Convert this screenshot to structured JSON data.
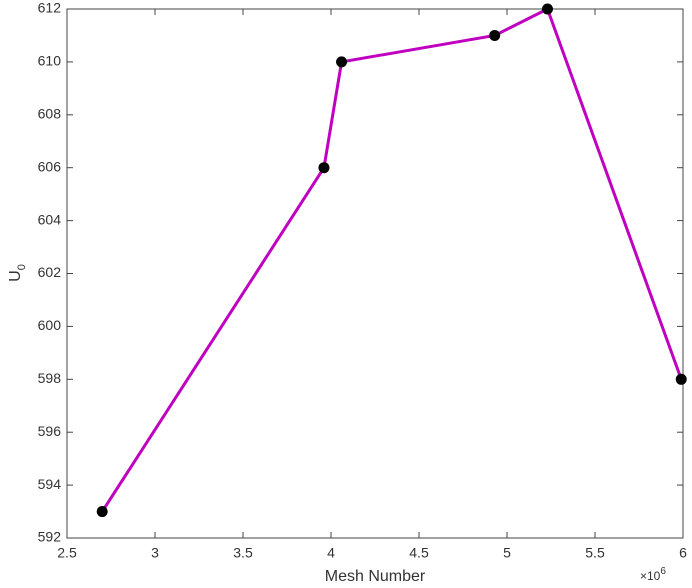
{
  "chart_data": {
    "type": "line",
    "xlabel": "Mesh Number",
    "ylabel": {
      "text": "U",
      "subscript": "0"
    },
    "x_multiplier": {
      "base": "×10",
      "exponent": "6"
    },
    "x": [
      2.7,
      3.96,
      4.06,
      4.93,
      5.23,
      5.99
    ],
    "series": [
      {
        "color": "#c000c0",
        "marker_color": "#000000",
        "values": [
          593,
          606,
          610,
          611,
          612,
          598
        ]
      }
    ],
    "xlim": [
      2.5,
      6
    ],
    "xticks": [
      2.5,
      3,
      3.5,
      4,
      4.5,
      5,
      5.5,
      6
    ],
    "ylim": [
      592,
      612
    ],
    "yticks": [
      592,
      594,
      596,
      598,
      600,
      602,
      604,
      606,
      608,
      610,
      612
    ],
    "grid": false
  }
}
